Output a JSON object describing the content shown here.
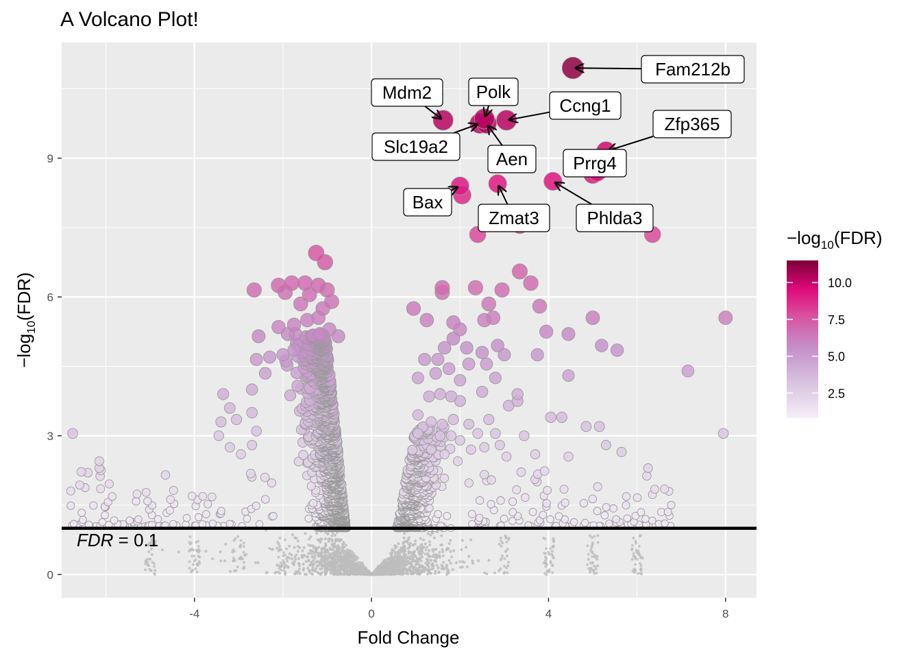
{
  "chart_data": {
    "type": "scatter",
    "title": "A Volcano Plot!",
    "xlabel": "Fold Change",
    "ylabel": "-log10(FDR)",
    "xlim": [
      -7.0,
      8.7
    ],
    "ylim": [
      -0.5,
      11.5
    ],
    "x_ticks": [
      "-4",
      "0",
      "4",
      "8"
    ],
    "y_ticks": [
      "0",
      "3",
      "6",
      "9"
    ],
    "threshold": {
      "y": 1.0,
      "label_italic": "FDR",
      "label_rest": " = 0.1"
    },
    "legend": {
      "title": "-log10(FDR)",
      "ticks": [
        "2.5",
        "5.0",
        "7.5",
        "10.0"
      ],
      "range": [
        0.8,
        11.5
      ],
      "position": "right"
    },
    "colors": {
      "panel": "#ebebeb",
      "grid": "#ffffff",
      "nonsig": "#bebebe",
      "low": "#f5eef8",
      "mid": "#c9a5d6",
      "high": "#e0087a",
      "top": "#7a0036"
    },
    "labeled_genes": [
      {
        "name": "Fam212b",
        "x": 4.55,
        "y": 10.95
      },
      {
        "name": "Mdm2",
        "x": 1.62,
        "y": 9.82
      },
      {
        "name": "Polk",
        "x": 2.55,
        "y": 9.85
      },
      {
        "name": "Ccng1",
        "x": 3.05,
        "y": 9.82
      },
      {
        "name": "Slc19a2",
        "x": 2.45,
        "y": 9.75
      },
      {
        "name": "Aen",
        "x": 2.6,
        "y": 9.75
      },
      {
        "name": "Zfp365",
        "x": 5.3,
        "y": 9.15
      },
      {
        "name": "Prrg4",
        "x": 5.1,
        "y": 8.7
      },
      {
        "name": "Bax",
        "x": 2.0,
        "y": 8.4
      },
      {
        "name": "Zmat3",
        "x": 2.85,
        "y": 8.45
      },
      {
        "name": "Phlda3",
        "x": 4.1,
        "y": 8.5
      }
    ],
    "sig_points": [
      {
        "x": 2.4,
        "y": 7.35
      },
      {
        "x": 6.35,
        "y": 7.35
      },
      {
        "x": 3.35,
        "y": 7.55
      },
      {
        "x": 3.35,
        "y": 6.55
      },
      {
        "x": 2.05,
        "y": 8.2
      },
      {
        "x": 5.0,
        "y": 8.65
      },
      {
        "x": -1.25,
        "y": 6.95
      },
      {
        "x": -1.05,
        "y": 6.75
      },
      {
        "x": -2.65,
        "y": 6.15
      },
      {
        "x": -2.1,
        "y": 6.25
      },
      {
        "x": -1.8,
        "y": 6.3
      },
      {
        "x": -1.5,
        "y": 6.3
      },
      {
        "x": -1.2,
        "y": 6.25
      },
      {
        "x": -1.95,
        "y": 6.1
      },
      {
        "x": -1.4,
        "y": 6.05
      },
      {
        "x": -1.0,
        "y": 6.15
      },
      {
        "x": -0.9,
        "y": 5.9
      },
      {
        "x": -1.6,
        "y": 5.85
      },
      {
        "x": -1.1,
        "y": 5.75
      },
      {
        "x": -2.1,
        "y": 5.35
      },
      {
        "x": -1.75,
        "y": 5.4
      },
      {
        "x": -1.45,
        "y": 5.5
      },
      {
        "x": -2.55,
        "y": 5.15
      },
      {
        "x": -2.6,
        "y": 4.65
      },
      {
        "x": -2.3,
        "y": 4.7
      },
      {
        "x": -2.0,
        "y": 4.75
      },
      {
        "x": -1.75,
        "y": 4.85
      },
      {
        "x": -1.2,
        "y": 5.55
      },
      {
        "x": -0.75,
        "y": 5.15
      },
      {
        "x": -0.95,
        "y": 5.3
      },
      {
        "x": -2.4,
        "y": 4.35
      },
      {
        "x": -3.35,
        "y": 3.9
      },
      {
        "x": -3.2,
        "y": 3.6
      },
      {
        "x": -3.4,
        "y": 3.3
      },
      {
        "x": -3.05,
        "y": 3.35
      },
      {
        "x": -3.45,
        "y": 3.0
      },
      {
        "x": -3.2,
        "y": 2.75
      },
      {
        "x": -2.7,
        "y": 4.0
      },
      {
        "x": -2.7,
        "y": 3.5
      },
      {
        "x": -2.6,
        "y": 3.1
      },
      {
        "x": -2.7,
        "y": 2.8
      },
      {
        "x": -2.95,
        "y": 2.6
      },
      {
        "x": -6.75,
        "y": 3.05
      },
      {
        "x": -6.15,
        "y": 2.45
      },
      {
        "x": -6.15,
        "y": 2.3
      },
      {
        "x": 0.95,
        "y": 5.75
      },
      {
        "x": 1.25,
        "y": 5.5
      },
      {
        "x": 1.6,
        "y": 6.1
      },
      {
        "x": 1.6,
        "y": 6.2
      },
      {
        "x": 2.35,
        "y": 6.2
      },
      {
        "x": 2.65,
        "y": 5.85
      },
      {
        "x": 2.95,
        "y": 6.15
      },
      {
        "x": 3.6,
        "y": 6.3
      },
      {
        "x": 3.8,
        "y": 5.8
      },
      {
        "x": 1.85,
        "y": 5.45
      },
      {
        "x": 2.0,
        "y": 5.3
      },
      {
        "x": 2.55,
        "y": 5.5
      },
      {
        "x": 2.75,
        "y": 5.55
      },
      {
        "x": 3.95,
        "y": 5.25
      },
      {
        "x": 4.45,
        "y": 5.2
      },
      {
        "x": 5.0,
        "y": 5.55
      },
      {
        "x": 5.2,
        "y": 4.95
      },
      {
        "x": 5.55,
        "y": 4.85
      },
      {
        "x": 8.0,
        "y": 5.55
      },
      {
        "x": 7.15,
        "y": 4.4
      },
      {
        "x": 1.85,
        "y": 5.1
      },
      {
        "x": 2.15,
        "y": 4.9
      },
      {
        "x": 2.5,
        "y": 4.8
      },
      {
        "x": 2.85,
        "y": 4.95
      },
      {
        "x": 3.0,
        "y": 4.75
      },
      {
        "x": 3.75,
        "y": 4.75
      },
      {
        "x": 4.45,
        "y": 4.3
      },
      {
        "x": 1.2,
        "y": 4.65
      },
      {
        "x": 1.5,
        "y": 4.65
      },
      {
        "x": 1.65,
        "y": 4.9
      },
      {
        "x": 1.75,
        "y": 4.45
      },
      {
        "x": 2.2,
        "y": 4.55
      },
      {
        "x": 2.6,
        "y": 4.55
      },
      {
        "x": 2.8,
        "y": 4.25
      },
      {
        "x": 1.05,
        "y": 4.25
      },
      {
        "x": 1.45,
        "y": 4.35
      },
      {
        "x": 2.0,
        "y": 4.2
      },
      {
        "x": 2.5,
        "y": 3.95
      },
      {
        "x": 3.3,
        "y": 3.9
      },
      {
        "x": 3.3,
        "y": 3.75
      },
      {
        "x": 3.1,
        "y": 3.65
      },
      {
        "x": 4.05,
        "y": 3.4
      },
      {
        "x": 4.3,
        "y": 3.4
      },
      {
        "x": 4.85,
        "y": 3.2
      },
      {
        "x": 5.15,
        "y": 3.2
      },
      {
        "x": 1.3,
        "y": 3.85
      },
      {
        "x": 1.55,
        "y": 3.9
      },
      {
        "x": 1.8,
        "y": 3.85
      },
      {
        "x": 2.0,
        "y": 3.75
      },
      {
        "x": 1.05,
        "y": 3.45
      },
      {
        "x": 1.35,
        "y": 3.3
      },
      {
        "x": 1.6,
        "y": 3.25
      },
      {
        "x": 1.85,
        "y": 3.35
      },
      {
        "x": 2.2,
        "y": 3.25
      },
      {
        "x": 2.4,
        "y": 3.05
      },
      {
        "x": 2.65,
        "y": 3.35
      },
      {
        "x": 2.8,
        "y": 3.05
      },
      {
        "x": 3.45,
        "y": 3.0
      },
      {
        "x": 5.3,
        "y": 2.8
      },
      {
        "x": 6.25,
        "y": 2.3
      },
      {
        "x": 5.65,
        "y": 2.65
      },
      {
        "x": 3.7,
        "y": 2.6
      },
      {
        "x": 4.45,
        "y": 2.55
      },
      {
        "x": 7.95,
        "y": 3.05
      },
      {
        "x": 1.05,
        "y": 3.05
      },
      {
        "x": 1.55,
        "y": 3.0
      },
      {
        "x": 1.8,
        "y": 3.0
      },
      {
        "x": 2.0,
        "y": 2.9
      },
      {
        "x": 2.25,
        "y": 2.7
      },
      {
        "x": 2.55,
        "y": 2.75
      },
      {
        "x": 2.9,
        "y": 2.8
      },
      {
        "x": 3.05,
        "y": 2.55
      },
      {
        "x": 1.35,
        "y": 2.7
      },
      {
        "x": 1.65,
        "y": 2.6
      },
      {
        "x": 1.95,
        "y": 2.45
      }
    ]
  }
}
